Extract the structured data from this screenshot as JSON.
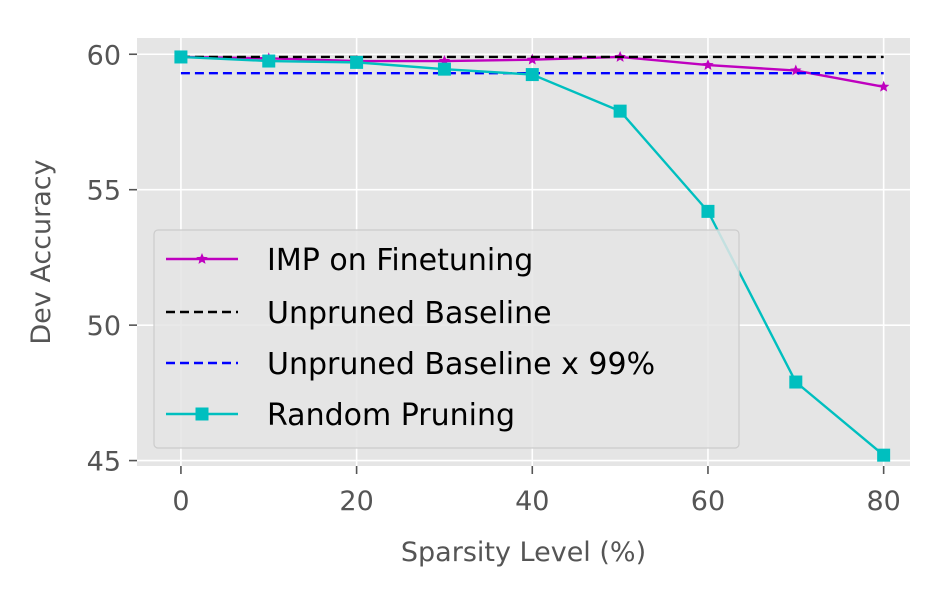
{
  "chart_data": {
    "type": "line",
    "title": "",
    "xlabel": "Sparsity Level (%)",
    "ylabel": "Dev Accuracy",
    "xlim": [
      -5,
      83
    ],
    "ylim": [
      44.8,
      60.6
    ],
    "xticks": [
      0,
      20,
      40,
      60,
      80
    ],
    "yticks": [
      45,
      50,
      55,
      60
    ],
    "grid": true,
    "legend_position": "lower-left",
    "series": [
      {
        "name": "IMP on Finetuning",
        "color": "#bf00bf",
        "style": "solid",
        "marker": "star",
        "x": [
          0,
          10,
          20,
          30,
          40,
          50,
          60,
          70,
          80
        ],
        "y": [
          59.9,
          59.85,
          59.75,
          59.75,
          59.8,
          59.9,
          59.6,
          59.4,
          58.8
        ]
      },
      {
        "name": "Unpruned Baseline",
        "color": "#000000",
        "style": "dashed",
        "marker": "none",
        "x": [
          0,
          80
        ],
        "y": [
          59.9,
          59.9
        ]
      },
      {
        "name": "Unpruned Baseline x 99%",
        "color": "#0000ff",
        "style": "dashed",
        "marker": "none",
        "x": [
          0,
          80
        ],
        "y": [
          59.3,
          59.3
        ]
      },
      {
        "name": "Random Pruning",
        "color": "#00bfbf",
        "style": "solid",
        "marker": "square",
        "x": [
          0,
          10,
          20,
          30,
          40,
          50,
          60,
          70,
          80
        ],
        "y": [
          59.9,
          59.75,
          59.7,
          59.45,
          59.25,
          57.9,
          54.2,
          47.9,
          45.2
        ]
      }
    ]
  }
}
